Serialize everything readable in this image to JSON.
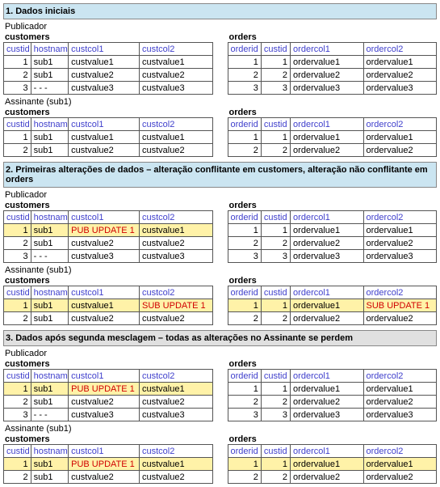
{
  "colors": {
    "section_bg": "#cbe5f1",
    "highlight_bg": "#fff2a8",
    "update_text": "#d00000",
    "header_text": "#4040cc",
    "border": "#555555",
    "section3_bg": "#e0e0e0"
  },
  "labels": {
    "publisher": "Publicador",
    "subscriber": "Assinante (sub1)",
    "customers": "customers",
    "orders": "orders"
  },
  "cust_headers": [
    "custid",
    "hostname",
    "custcol1",
    "custcol2"
  ],
  "ord_headers": [
    "orderid",
    "custid",
    "ordercol1",
    "ordercol2"
  ],
  "sections": [
    {
      "title": "1. Dados iniciais",
      "bar_color": "#cbe5f1",
      "sources": [
        {
          "label": "Publicador",
          "customers": [
            [
              {
                "v": "1"
              },
              {
                "v": "sub1"
              },
              {
                "v": "custvalue1"
              },
              {
                "v": "custvalue1"
              }
            ],
            [
              {
                "v": "2"
              },
              {
                "v": "sub1"
              },
              {
                "v": "custvalue2"
              },
              {
                "v": "custvalue2"
              }
            ],
            [
              {
                "v": "3"
              },
              {
                "v": "- - -"
              },
              {
                "v": "custvalue3"
              },
              {
                "v": "custvalue3"
              }
            ]
          ],
          "orders": [
            [
              {
                "v": "1"
              },
              {
                "v": "1"
              },
              {
                "v": "ordervalue1"
              },
              {
                "v": "ordervalue1"
              }
            ],
            [
              {
                "v": "2"
              },
              {
                "v": "2"
              },
              {
                "v": "ordervalue2"
              },
              {
                "v": "ordervalue2"
              }
            ],
            [
              {
                "v": "3"
              },
              {
                "v": "3"
              },
              {
                "v": "ordervalue3"
              },
              {
                "v": "ordervalue3"
              }
            ]
          ]
        },
        {
          "label": "Assinante (sub1)",
          "customers": [
            [
              {
                "v": "1"
              },
              {
                "v": "sub1"
              },
              {
                "v": "custvalue1"
              },
              {
                "v": "custvalue1"
              }
            ],
            [
              {
                "v": "2"
              },
              {
                "v": "sub1"
              },
              {
                "v": "custvalue2"
              },
              {
                "v": "custvalue2"
              }
            ]
          ],
          "orders": [
            [
              {
                "v": "1"
              },
              {
                "v": "1"
              },
              {
                "v": "ordervalue1"
              },
              {
                "v": "ordervalue1"
              }
            ],
            [
              {
                "v": "2"
              },
              {
                "v": "2"
              },
              {
                "v": "ordervalue2"
              },
              {
                "v": "ordervalue2"
              }
            ]
          ]
        }
      ]
    },
    {
      "title": "2. Primeiras alterações de dados – alteração conflitante em customers, alteração não conflitante em orders",
      "bar_color": "#cbe5f1",
      "sources": [
        {
          "label": "Publicador",
          "customers": [
            [
              {
                "v": "1",
                "hl": true
              },
              {
                "v": "sub1",
                "hl": true
              },
              {
                "v": "PUB UPDATE 1",
                "hl": true,
                "upd": true
              },
              {
                "v": "custvalue1",
                "hl": true
              }
            ],
            [
              {
                "v": "2"
              },
              {
                "v": "sub1"
              },
              {
                "v": "custvalue2"
              },
              {
                "v": "custvalue2"
              }
            ],
            [
              {
                "v": "3"
              },
              {
                "v": "- - -"
              },
              {
                "v": "custvalue3"
              },
              {
                "v": "custvalue3"
              }
            ]
          ],
          "orders": [
            [
              {
                "v": "1"
              },
              {
                "v": "1"
              },
              {
                "v": "ordervalue1"
              },
              {
                "v": "ordervalue1"
              }
            ],
            [
              {
                "v": "2"
              },
              {
                "v": "2"
              },
              {
                "v": "ordervalue2"
              },
              {
                "v": "ordervalue2"
              }
            ],
            [
              {
                "v": "3"
              },
              {
                "v": "3"
              },
              {
                "v": "ordervalue3"
              },
              {
                "v": "ordervalue3"
              }
            ]
          ]
        },
        {
          "label": "Assinante (sub1)",
          "customers": [
            [
              {
                "v": "1",
                "hl": true
              },
              {
                "v": "sub1",
                "hl": true
              },
              {
                "v": "custvalue1",
                "hl": true
              },
              {
                "v": "SUB UPDATE 1",
                "hl": true,
                "upd": true
              }
            ],
            [
              {
                "v": "2"
              },
              {
                "v": "sub1"
              },
              {
                "v": "custvalue2"
              },
              {
                "v": "custvalue2"
              }
            ]
          ],
          "orders": [
            [
              {
                "v": "1",
                "hl": true
              },
              {
                "v": "1",
                "hl": true
              },
              {
                "v": "ordervalue1",
                "hl": true
              },
              {
                "v": "SUB UPDATE 1",
                "hl": true,
                "upd": true
              }
            ],
            [
              {
                "v": "2"
              },
              {
                "v": "2"
              },
              {
                "v": "ordervalue2"
              },
              {
                "v": "ordervalue2"
              }
            ]
          ]
        }
      ]
    },
    {
      "title": "3. Dados após segunda mesclagem – todas as alterações no Assinante se perdem",
      "bar_color": "#e0e0e0",
      "sources": [
        {
          "label": "Publicador",
          "customers": [
            [
              {
                "v": "1",
                "hl": true
              },
              {
                "v": "sub1",
                "hl": true
              },
              {
                "v": "PUB UPDATE 1",
                "hl": true,
                "upd": true
              },
              {
                "v": "custvalue1",
                "hl": true
              }
            ],
            [
              {
                "v": "2"
              },
              {
                "v": "sub1"
              },
              {
                "v": "custvalue2"
              },
              {
                "v": "custvalue2"
              }
            ],
            [
              {
                "v": "3"
              },
              {
                "v": "- - -"
              },
              {
                "v": "custvalue3"
              },
              {
                "v": "custvalue3"
              }
            ]
          ],
          "orders": [
            [
              {
                "v": "1"
              },
              {
                "v": "1"
              },
              {
                "v": "ordervalue1"
              },
              {
                "v": "ordervalue1"
              }
            ],
            [
              {
                "v": "2"
              },
              {
                "v": "2"
              },
              {
                "v": "ordervalue2"
              },
              {
                "v": "ordervalue2"
              }
            ],
            [
              {
                "v": "3"
              },
              {
                "v": "3"
              },
              {
                "v": "ordervalue3"
              },
              {
                "v": "ordervalue3"
              }
            ]
          ]
        },
        {
          "label": "Assinante (sub1)",
          "customers": [
            [
              {
                "v": "1",
                "hl": true
              },
              {
                "v": "sub1",
                "hl": true
              },
              {
                "v": "PUB UPDATE 1",
                "hl": true,
                "upd": true
              },
              {
                "v": "custvalue1",
                "hl": true
              }
            ],
            [
              {
                "v": "2"
              },
              {
                "v": "sub1"
              },
              {
                "v": "custvalue2"
              },
              {
                "v": "custvalue2"
              }
            ]
          ],
          "orders": [
            [
              {
                "v": "1",
                "hl": true
              },
              {
                "v": "1",
                "hl": true
              },
              {
                "v": "ordervalue1",
                "hl": true
              },
              {
                "v": "ordervalue1",
                "hl": true
              }
            ],
            [
              {
                "v": "2"
              },
              {
                "v": "2"
              },
              {
                "v": "ordervalue2"
              },
              {
                "v": "ordervalue2"
              }
            ]
          ]
        }
      ]
    }
  ]
}
